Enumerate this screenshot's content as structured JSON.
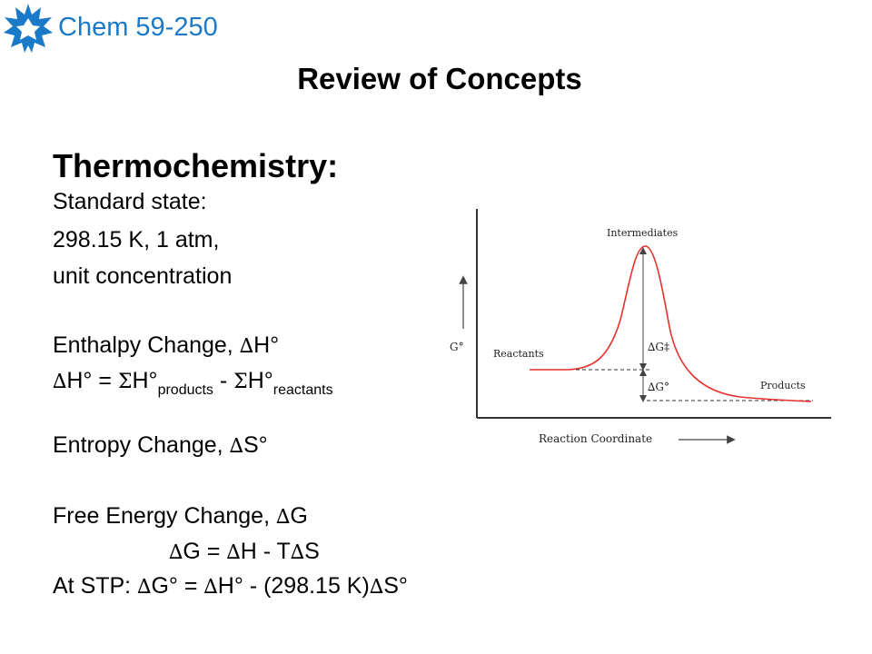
{
  "header": {
    "logo_icon": "maple-leaf-logo",
    "course": "Chem 59-250"
  },
  "slide": {
    "title": "Review of Concepts",
    "section_title": "Thermochemistry:",
    "standard_state": {
      "label": "Standard state:",
      "line1": "298.15 K, 1 atm,",
      "line2": "unit concentration"
    },
    "enthalpy": {
      "label": "Enthalpy Change,",
      "symbol": "H°",
      "eq_lhs": "H° =",
      "eq_sum1": "H°",
      "eq_sub1": "products",
      "eq_minus": "-",
      "eq_sum2": "H°",
      "eq_sub2": "reactants"
    },
    "entropy": {
      "label": "Entropy Change,",
      "symbol": "S°"
    },
    "free_energy": {
      "label": "Free Energy Change,",
      "symbol": "G",
      "eq1_a": "G =",
      "eq1_b": "H - T",
      "eq1_c": "S",
      "stp_label": "At STP:",
      "stp_a": "G° =",
      "stp_b": "H° - (298.15 K)",
      "stp_c": "S°"
    },
    "delta_glyph": "∆",
    "sigma_glyph": "Σ"
  },
  "diagram": {
    "y_axis_label": "G°",
    "x_axis_label": "Reaction Coordinate",
    "label_intermediates": "Intermediates",
    "label_reactants": "Reactants",
    "label_products": "Products",
    "label_activation": "∆G‡",
    "label_delta_g": "∆G°",
    "curve_color": "#e8302c"
  }
}
